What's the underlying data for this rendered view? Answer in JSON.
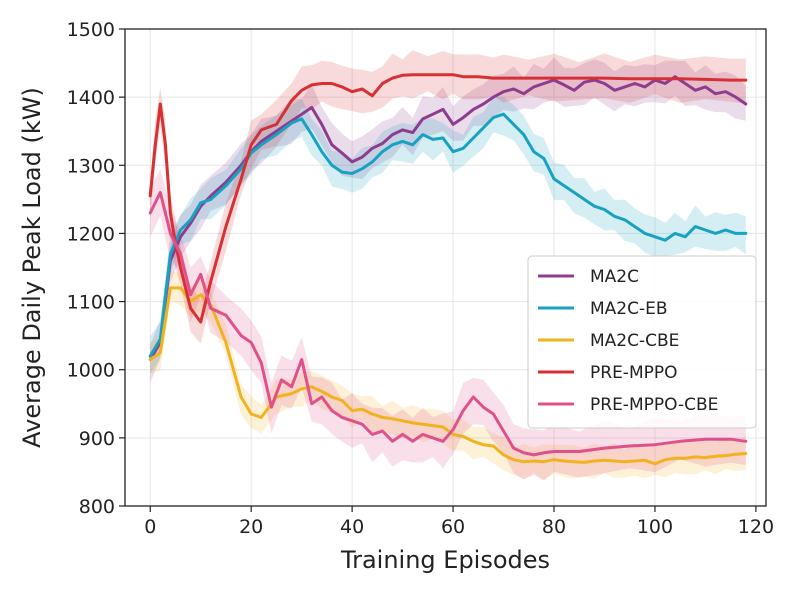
{
  "chart_data": {
    "type": "line",
    "title": "",
    "xlabel": "Training Episodes",
    "ylabel": "Average Daily Peak Load (kW)",
    "xlim": [
      -5,
      122
    ],
    "ylim": [
      800,
      1500
    ],
    "xticks": [
      0,
      20,
      40,
      60,
      80,
      100,
      120
    ],
    "yticks": [
      800,
      900,
      1000,
      1100,
      1200,
      1300,
      1400,
      1500
    ],
    "grid": true,
    "legend_position": "center-right",
    "series": [
      {
        "name": "MA2C",
        "color": "#8e3d8e",
        "x": [
          0,
          2,
          4,
          6,
          8,
          10,
          12,
          15,
          18,
          20,
          22,
          25,
          28,
          30,
          32,
          34,
          36,
          38,
          40,
          42,
          44,
          46,
          48,
          50,
          52,
          54,
          56,
          58,
          60,
          62,
          64,
          66,
          68,
          70,
          72,
          74,
          76,
          78,
          80,
          82,
          84,
          86,
          88,
          90,
          92,
          94,
          96,
          98,
          100,
          102,
          104,
          106,
          108,
          110,
          112,
          114,
          116,
          118
        ],
        "values": [
          1015,
          1040,
          1160,
          1195,
          1215,
          1240,
          1255,
          1275,
          1300,
          1320,
          1335,
          1350,
          1365,
          1375,
          1385,
          1360,
          1330,
          1318,
          1305,
          1312,
          1325,
          1332,
          1345,
          1352,
          1348,
          1368,
          1375,
          1382,
          1360,
          1370,
          1382,
          1390,
          1400,
          1408,
          1412,
          1405,
          1415,
          1420,
          1425,
          1418,
          1410,
          1422,
          1425,
          1420,
          1410,
          1415,
          1420,
          1415,
          1425,
          1420,
          1430,
          1420,
          1410,
          1415,
          1405,
          1408,
          1400,
          1390
        ]
      },
      {
        "name": "MA2C-EB",
        "color": "#17a2c2",
        "x": [
          0,
          2,
          4,
          6,
          8,
          10,
          12,
          15,
          18,
          20,
          22,
          25,
          28,
          30,
          32,
          34,
          36,
          38,
          40,
          42,
          44,
          46,
          48,
          50,
          52,
          54,
          56,
          58,
          60,
          62,
          64,
          66,
          68,
          70,
          72,
          74,
          76,
          78,
          80,
          82,
          84,
          86,
          88,
          90,
          92,
          94,
          96,
          98,
          100,
          102,
          104,
          106,
          108,
          110,
          112,
          114,
          116,
          118
        ],
        "values": [
          1020,
          1045,
          1170,
          1205,
          1220,
          1245,
          1250,
          1270,
          1295,
          1318,
          1330,
          1345,
          1362,
          1368,
          1345,
          1320,
          1300,
          1290,
          1288,
          1295,
          1305,
          1320,
          1330,
          1335,
          1330,
          1345,
          1338,
          1340,
          1320,
          1325,
          1340,
          1355,
          1370,
          1375,
          1360,
          1345,
          1320,
          1310,
          1280,
          1270,
          1260,
          1250,
          1240,
          1235,
          1225,
          1220,
          1210,
          1200,
          1195,
          1190,
          1200,
          1195,
          1210,
          1205,
          1200,
          1205,
          1200,
          1200
        ]
      },
      {
        "name": "MA2C-CBE",
        "color": "#f2b21f",
        "x": [
          0,
          2,
          4,
          6,
          8,
          10,
          12,
          15,
          18,
          20,
          22,
          25,
          28,
          30,
          32,
          34,
          36,
          38,
          40,
          42,
          44,
          46,
          48,
          50,
          52,
          54,
          56,
          58,
          60,
          62,
          64,
          66,
          68,
          70,
          72,
          74,
          76,
          78,
          80,
          82,
          84,
          86,
          88,
          90,
          92,
          94,
          96,
          98,
          100,
          102,
          104,
          106,
          108,
          110,
          112,
          114,
          116,
          118
        ],
        "values": [
          1015,
          1025,
          1120,
          1120,
          1100,
          1110,
          1095,
          1040,
          960,
          935,
          930,
          960,
          965,
          972,
          975,
          968,
          960,
          955,
          940,
          942,
          935,
          930,
          928,
          925,
          922,
          920,
          918,
          916,
          905,
          902,
          895,
          890,
          888,
          875,
          868,
          865,
          866,
          865,
          868,
          866,
          865,
          864,
          866,
          867,
          866,
          865,
          866,
          867,
          862,
          868,
          870,
          870,
          872,
          871,
          873,
          874,
          876,
          877
        ]
      },
      {
        "name": "PRE-MPPO",
        "color": "#d63034",
        "x": [
          0,
          1,
          2,
          3,
          4,
          5,
          6,
          8,
          10,
          12,
          15,
          18,
          20,
          22,
          25,
          28,
          30,
          32,
          34,
          36,
          38,
          40,
          42,
          44,
          46,
          48,
          50,
          52,
          55,
          58,
          60,
          62,
          65,
          68,
          70,
          75,
          80,
          85,
          90,
          95,
          100,
          105,
          110,
          115,
          118
        ],
        "values": [
          1255,
          1330,
          1390,
          1330,
          1230,
          1185,
          1150,
          1090,
          1070,
          1130,
          1210,
          1280,
          1330,
          1352,
          1360,
          1395,
          1410,
          1418,
          1420,
          1420,
          1415,
          1408,
          1412,
          1402,
          1420,
          1428,
          1432,
          1433,
          1433,
          1433,
          1433,
          1430,
          1430,
          1428,
          1428,
          1428,
          1428,
          1428,
          1428,
          1427,
          1427,
          1427,
          1426,
          1425,
          1425
        ]
      },
      {
        "name": "PRE-MPPO-CBE",
        "color": "#e0508a",
        "x": [
          0,
          2,
          4,
          6,
          8,
          10,
          12,
          15,
          18,
          20,
          22,
          24,
          26,
          28,
          30,
          32,
          34,
          36,
          38,
          40,
          42,
          44,
          46,
          48,
          50,
          52,
          54,
          56,
          58,
          60,
          62,
          64,
          66,
          68,
          70,
          72,
          74,
          76,
          78,
          80,
          85,
          90,
          95,
          100,
          105,
          110,
          115,
          118
        ],
        "values": [
          1230,
          1260,
          1200,
          1170,
          1110,
          1140,
          1090,
          1080,
          1050,
          1040,
          1010,
          945,
          985,
          975,
          1015,
          950,
          960,
          940,
          930,
          925,
          920,
          905,
          910,
          895,
          905,
          895,
          905,
          900,
          895,
          912,
          940,
          960,
          945,
          935,
          910,
          885,
          878,
          875,
          878,
          880,
          880,
          885,
          888,
          890,
          895,
          898,
          898,
          895
        ]
      }
    ]
  }
}
